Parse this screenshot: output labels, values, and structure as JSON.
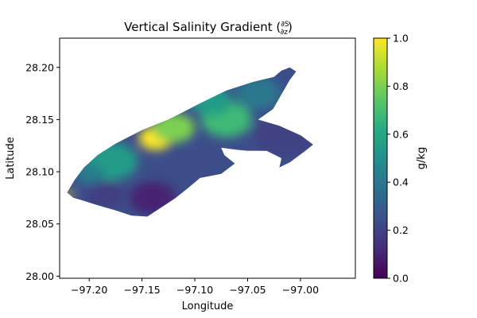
{
  "chart_data": {
    "type": "heatmap",
    "title": "Vertical Salinity Gradient (∂S/∂z)",
    "title_main": "Vertical Salinity Gradient (",
    "title_frac_num": "∂S",
    "title_frac_den": "∂z",
    "title_close": ")",
    "xlabel": "Longitude",
    "ylabel": "Latitude",
    "xlim": [
      -97.228,
      -96.948
    ],
    "ylim": [
      27.998,
      28.228
    ],
    "x_ticks": [
      {
        "value": -97.2,
        "label": "−97.20"
      },
      {
        "value": -97.15,
        "label": "−97.15"
      },
      {
        "value": -97.1,
        "label": "−97.10"
      },
      {
        "value": -97.05,
        "label": "−97.05"
      },
      {
        "value": -97.0,
        "label": "−97.00"
      }
    ],
    "y_ticks": [
      {
        "value": 28.0,
        "label": "28.00"
      },
      {
        "value": 28.05,
        "label": "28.05"
      },
      {
        "value": 28.1,
        "label": "28.10"
      },
      {
        "value": 28.15,
        "label": "28.15"
      },
      {
        "value": 28.2,
        "label": "28.20"
      }
    ],
    "colormap": "viridis",
    "colorbar": {
      "label": "g/kg",
      "range": [
        0.0,
        1.0
      ],
      "ticks": [
        {
          "value": 0.0,
          "label": "0.0"
        },
        {
          "value": 0.2,
          "label": "0.2"
        },
        {
          "value": 0.4,
          "label": "0.4"
        },
        {
          "value": 0.6,
          "label": "0.6"
        },
        {
          "value": 0.8,
          "label": "0.8"
        },
        {
          "value": 1.0,
          "label": "1.0"
        }
      ]
    },
    "domain_outline": [
      [
        -97.221,
        28.08
      ],
      [
        -97.214,
        28.092
      ],
      [
        -97.205,
        28.104
      ],
      [
        -97.192,
        28.116
      ],
      [
        -97.175,
        28.127
      ],
      [
        -97.15,
        28.14
      ],
      [
        -97.125,
        28.15
      ],
      [
        -97.098,
        28.164
      ],
      [
        -97.07,
        28.178
      ],
      [
        -97.045,
        28.186
      ],
      [
        -97.025,
        28.191
      ],
      [
        -97.018,
        28.197
      ],
      [
        -97.01,
        28.2
      ],
      [
        -97.004,
        28.196
      ],
      [
        -97.01,
        28.188
      ],
      [
        -97.018,
        28.174
      ],
      [
        -97.026,
        28.16
      ],
      [
        -97.04,
        28.15
      ],
      [
        -97.02,
        28.144
      ],
      [
        -97.0,
        28.135
      ],
      [
        -96.988,
        28.126
      ],
      [
        -96.998,
        28.118
      ],
      [
        -97.01,
        28.109
      ],
      [
        -97.02,
        28.104
      ],
      [
        -97.018,
        28.113
      ],
      [
        -97.032,
        28.12
      ],
      [
        -97.05,
        28.12
      ],
      [
        -97.06,
        28.121
      ],
      [
        -97.075,
        28.123
      ],
      [
        -97.072,
        28.116
      ],
      [
        -97.062,
        28.108
      ],
      [
        -97.075,
        28.098
      ],
      [
        -97.095,
        28.094
      ],
      [
        -97.108,
        28.083
      ],
      [
        -97.118,
        28.075
      ],
      [
        -97.133,
        28.065
      ],
      [
        -97.145,
        28.057
      ],
      [
        -97.16,
        28.058
      ],
      [
        -97.175,
        28.063
      ],
      [
        -97.192,
        28.068
      ],
      [
        -97.205,
        28.072
      ],
      [
        -97.215,
        28.075
      ],
      [
        -97.221,
        28.08
      ]
    ],
    "field_features": [
      {
        "lon": -97.137,
        "lat": 28.132,
        "value": 1.0,
        "extent": 0.016
      },
      {
        "lon": -97.12,
        "lat": 28.142,
        "value": 0.8,
        "extent": 0.02
      },
      {
        "lon": -97.07,
        "lat": 28.15,
        "value": 0.68,
        "extent": 0.024
      },
      {
        "lon": -97.085,
        "lat": 28.168,
        "value": 0.55,
        "extent": 0.02
      },
      {
        "lon": -97.18,
        "lat": 28.11,
        "value": 0.55,
        "extent": 0.026
      },
      {
        "lon": -97.2,
        "lat": 28.098,
        "value": 0.42,
        "extent": 0.014
      },
      {
        "lon": -97.219,
        "lat": 28.079,
        "value": 1.0,
        "extent": 0.004
      },
      {
        "lon": -97.04,
        "lat": 28.175,
        "value": 0.4,
        "extent": 0.022
      },
      {
        "lon": -97.015,
        "lat": 28.135,
        "value": 0.2,
        "extent": 0.03
      },
      {
        "lon": -97.14,
        "lat": 28.075,
        "value": 0.1,
        "extent": 0.022
      },
      {
        "lon": -97.185,
        "lat": 28.078,
        "value": 0.18,
        "extent": 0.018
      }
    ],
    "field_background": 0.24
  }
}
